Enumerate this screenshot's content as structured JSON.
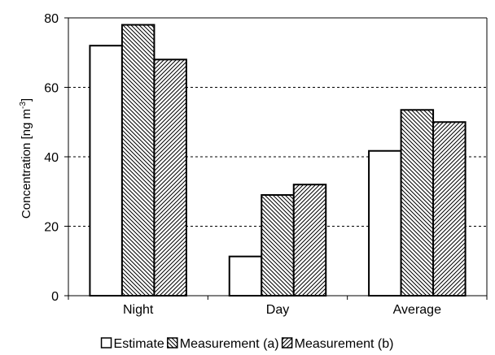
{
  "chart_data": {
    "type": "bar",
    "title": "",
    "xlabel": "",
    "ylabel": "Concentration [ng m",
    "ylabel_superscript": "-3",
    "ylabel_suffix": "]",
    "categories": [
      "Night",
      "Day",
      "Average"
    ],
    "series": [
      {
        "name": "Estimate",
        "values": [
          72,
          11.3,
          41.7
        ],
        "pattern": "none"
      },
      {
        "name": "Measurement (a)",
        "values": [
          78,
          29,
          53.5
        ],
        "pattern": "backslash-hatch"
      },
      {
        "name": "Measurement (b)",
        "values": [
          68,
          32,
          50
        ],
        "pattern": "slash-hatch"
      }
    ],
    "ylim": [
      0,
      80
    ],
    "yticks": [
      0,
      20,
      40,
      60,
      80
    ],
    "grid": "dashed-horizontal",
    "legend_position": "bottom",
    "colors": {
      "bar_fill": "#ffffff",
      "stroke": "#000000",
      "grid": "#000000"
    }
  }
}
